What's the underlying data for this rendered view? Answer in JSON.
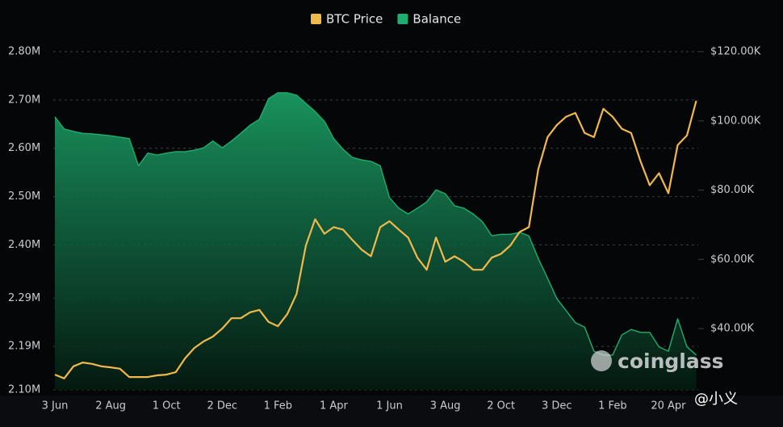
{
  "chart_data": {
    "type": "line",
    "x": [
      "3 Jun",
      null,
      null,
      null,
      null,
      null,
      "2 Aug",
      null,
      null,
      null,
      null,
      null,
      "1 Oct",
      null,
      null,
      null,
      null,
      null,
      "2 Dec",
      null,
      null,
      null,
      null,
      null,
      "1 Feb",
      null,
      null,
      null,
      null,
      null,
      "1 Apr",
      null,
      null,
      null,
      null,
      null,
      "1 Jun",
      null,
      null,
      null,
      null,
      null,
      "3 Aug",
      null,
      null,
      null,
      null,
      null,
      "2 Oct",
      null,
      null,
      null,
      null,
      null,
      "3 Dec",
      null,
      null,
      null,
      null,
      null,
      "1 Feb",
      null,
      null,
      null,
      null,
      null,
      "20 Apr",
      null,
      null,
      null
    ],
    "series": [
      {
        "name": "BTC Price",
        "color": "#f0b94a",
        "axis": "y2",
        "values": [
          26700,
          25600,
          29100,
          30200,
          29800,
          29100,
          28800,
          28400,
          26000,
          26000,
          26000,
          26500,
          26700,
          27400,
          31400,
          34400,
          36300,
          37700,
          40000,
          43000,
          43000,
          44700,
          45400,
          41900,
          40700,
          44200,
          50000,
          64000,
          71600,
          67400,
          69300,
          68600,
          65600,
          62800,
          60900,
          69300,
          71000,
          68600,
          66300,
          60500,
          57000,
          66300,
          59300,
          60900,
          59300,
          57000,
          57000,
          60500,
          61600,
          64000,
          67900,
          69300,
          86000,
          95300,
          98800,
          101200,
          102300,
          96500,
          95300,
          103500,
          101200,
          97700,
          96500,
          88400,
          81400,
          84900,
          79100,
          93000,
          95800,
          105800
        ]
      },
      {
        "name": "Balance",
        "color": "#1fae6f",
        "values": [
          2665000,
          2640000,
          2635000,
          2631000,
          2630000,
          2628000,
          2626000,
          2623000,
          2620000,
          2564000,
          2590000,
          2586000,
          2590000,
          2593000,
          2593000,
          2596000,
          2601000,
          2615000,
          2601000,
          2615000,
          2631000,
          2648000,
          2660000,
          2703000,
          2715000,
          2715000,
          2710000,
          2693000,
          2676000,
          2656000,
          2620000,
          2598000,
          2581000,
          2576000,
          2573000,
          2564000,
          2498000,
          2476000,
          2464000,
          2476000,
          2489000,
          2514000,
          2506000,
          2481000,
          2476000,
          2464000,
          2448000,
          2419000,
          2422000,
          2422000,
          2426000,
          2419000,
          2372000,
          2331000,
          2289000,
          2264000,
          2239000,
          2230000,
          2180000,
          2172000,
          2172000,
          2214000,
          2225000,
          2219000,
          2219000,
          2189000,
          2180000,
          2247000,
          2189000,
          2172000
        ]
      }
    ],
    "ylim": [
      2100000,
      2800000
    ],
    "yticks": [
      {
        "value": 2100000,
        "label": "2.10M"
      },
      {
        "value": 2190000,
        "label": "2.19M"
      },
      {
        "value": 2290000,
        "label": "2.29M"
      },
      {
        "value": 2400000,
        "label": "2.40M"
      },
      {
        "value": 2500000,
        "label": "2.50M"
      },
      {
        "value": 2600000,
        "label": "2.60M"
      },
      {
        "value": 2700000,
        "label": "2.70M"
      },
      {
        "value": 2800000,
        "label": "2.80M"
      }
    ],
    "y2lim": [
      22300,
      120000
    ],
    "y2ticks": [
      {
        "value": 40000,
        "label": "$40.00K"
      },
      {
        "value": 60000,
        "label": "$60.00K"
      },
      {
        "value": 80000,
        "label": "$80.00K"
      },
      {
        "value": 100000,
        "label": "$100.00K"
      },
      {
        "value": 120000,
        "label": "$120.00K"
      }
    ],
    "grid": true,
    "legend": "top",
    "watermark": "coinglass",
    "credit": "@小义"
  }
}
